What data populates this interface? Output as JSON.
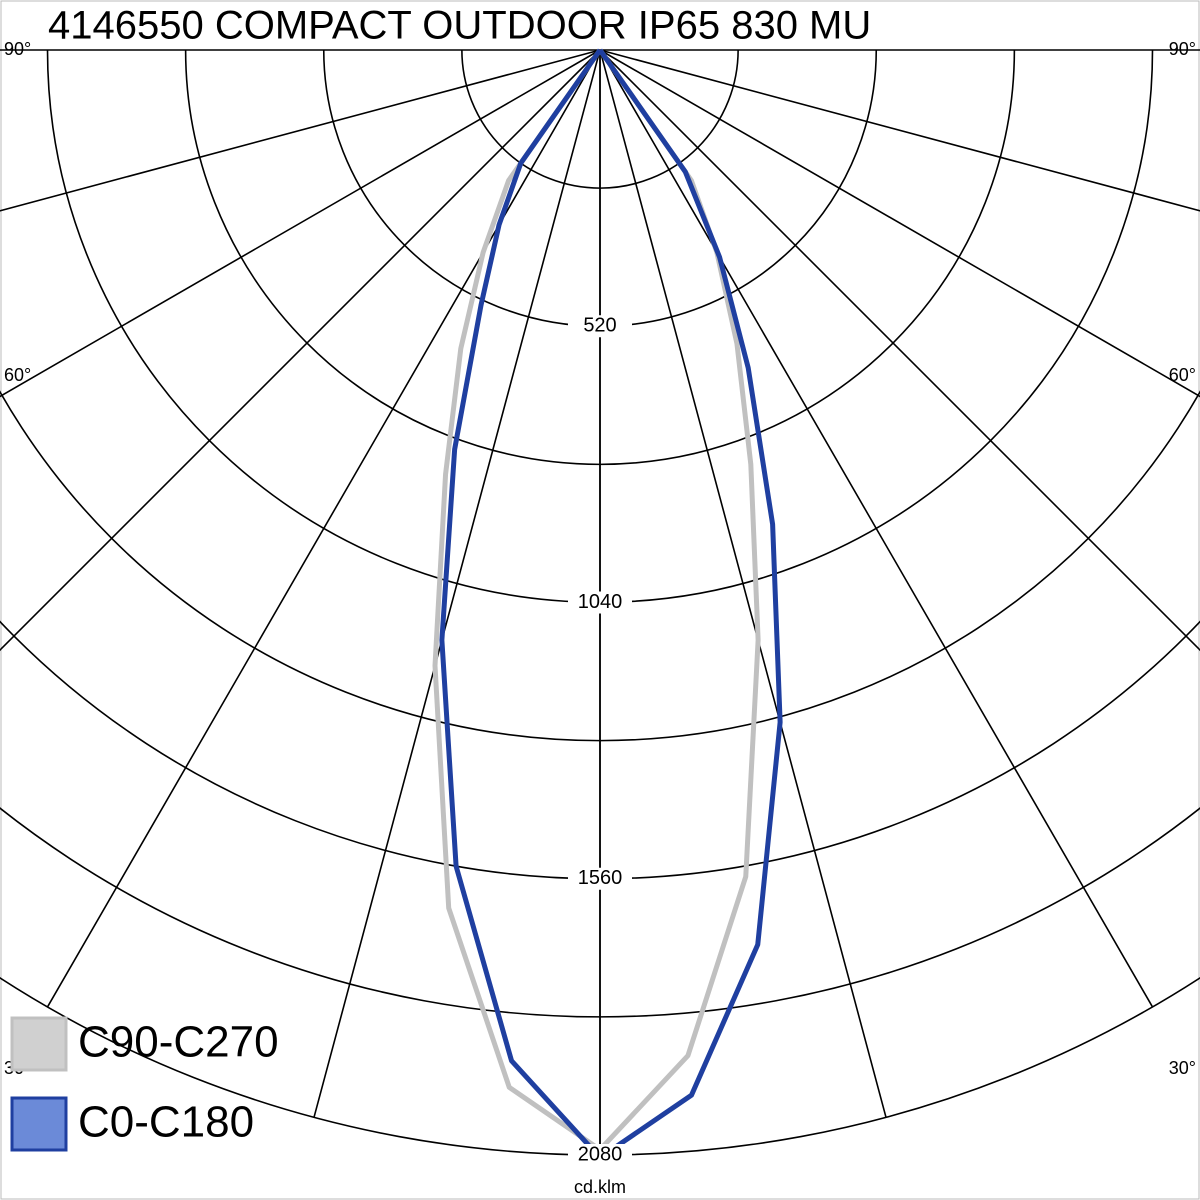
{
  "chart_data": {
    "type": "polar",
    "title": "4146550 COMPACT OUTDOOR IP65 830 MU",
    "unit_label": "cd.klm",
    "rlim": [
      0,
      2080
    ],
    "rticks": [
      520,
      1040,
      1560,
      2080
    ],
    "rminor": [
      260,
      780,
      1300,
      1820
    ],
    "angle_grid": [
      0,
      15,
      30,
      45,
      60,
      75,
      90
    ],
    "angle_labels": [
      {
        "value": 90,
        "label": "90°"
      },
      {
        "value": 60,
        "label": "60°"
      },
      {
        "value": 30,
        "label": "30°"
      }
    ],
    "angles": [
      -90,
      -35,
      -30,
      -25,
      -20,
      -15,
      -10,
      -5,
      0,
      5,
      10,
      15,
      20,
      25,
      30,
      35,
      90
    ],
    "series": [
      {
        "name": "C90-C270",
        "color": "#c0c0c0",
        "values": [
          0,
          300,
          440,
          620,
          850,
          1200,
          1640,
          1960,
          2070,
          1900,
          1580,
          1150,
          830,
          610,
          440,
          300,
          0
        ]
      },
      {
        "name": "C0-C180",
        "color": "#1f3fa0",
        "values": [
          0,
          260,
          380,
          530,
          800,
          1150,
          1560,
          1910,
          2085,
          1975,
          1710,
          1310,
          950,
          660,
          450,
          280,
          0
        ]
      }
    ]
  }
}
